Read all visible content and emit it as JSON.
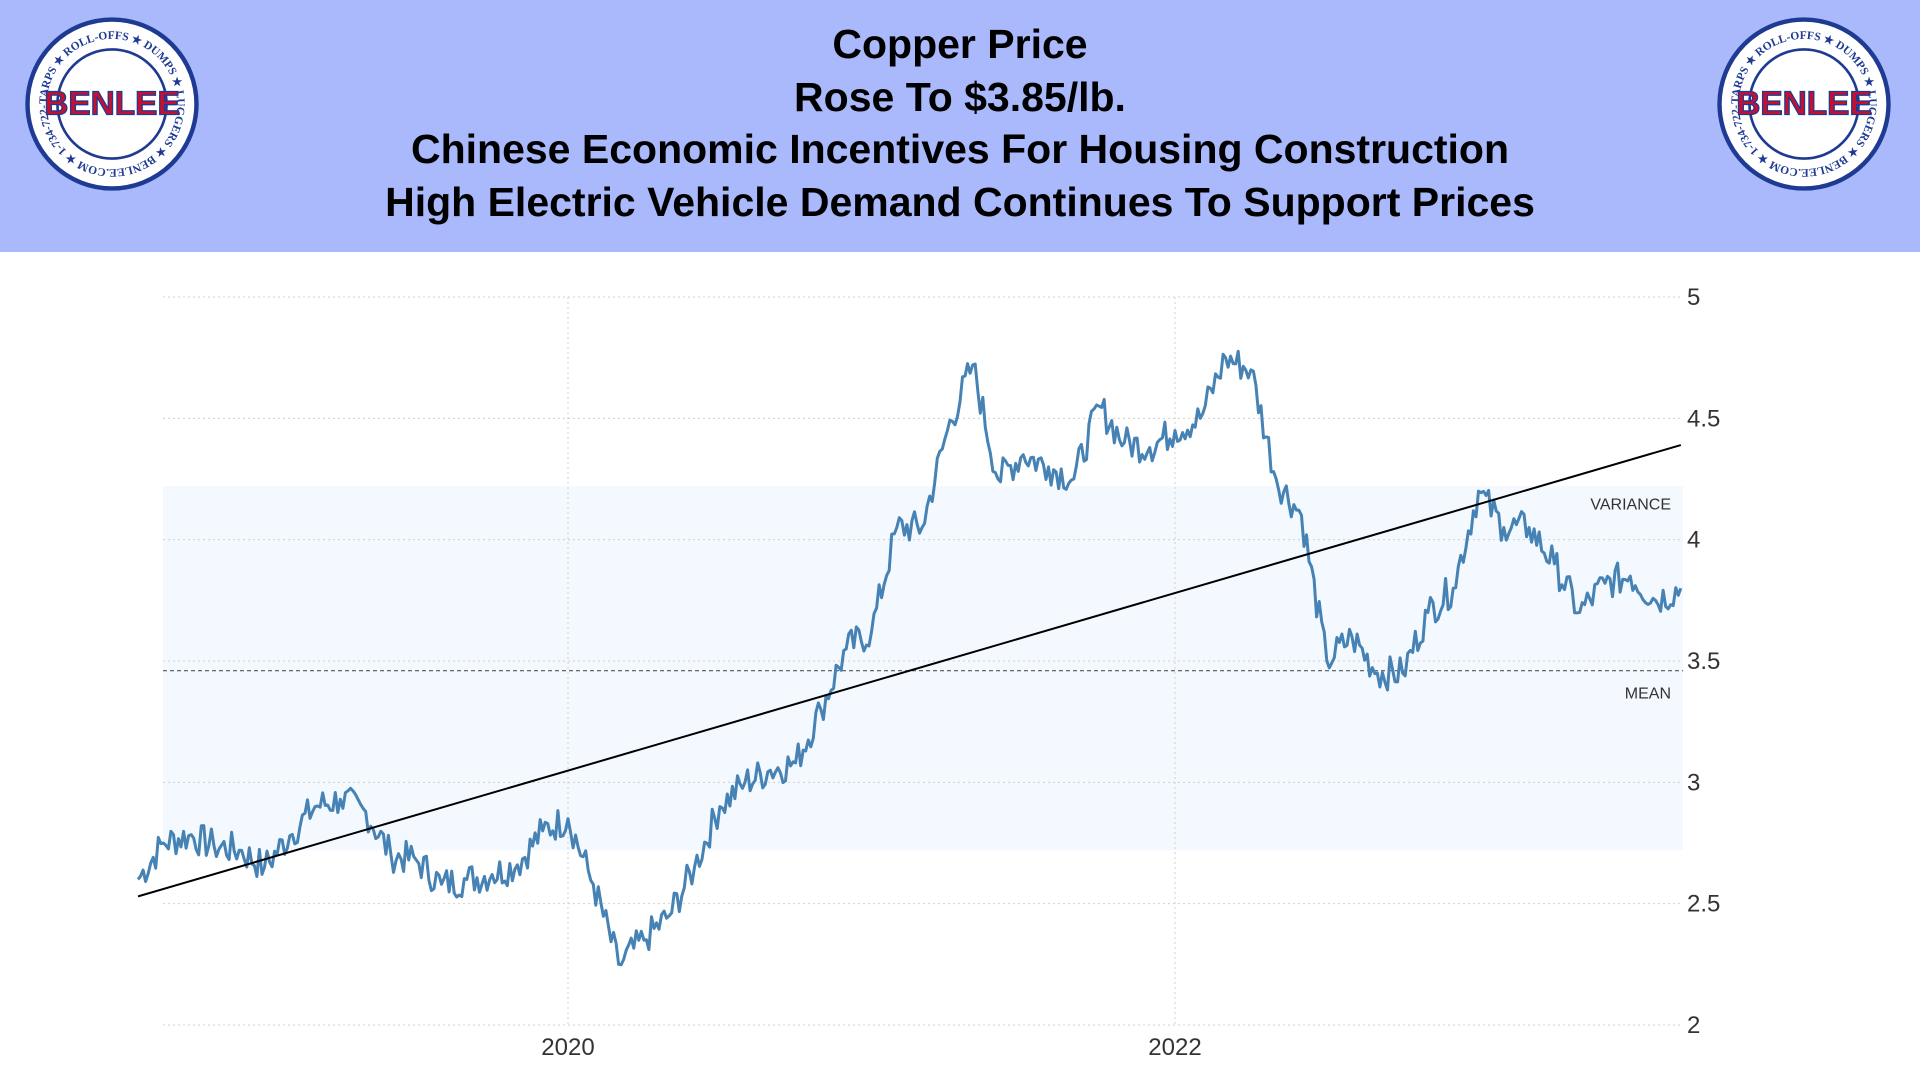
{
  "header": {
    "lines": [
      "Copper Price",
      "Rose To $3.85/lb.",
      "Chinese Economic Incentives For Housing Construction",
      "High Electric Vehicle Demand Continues To Support Prices"
    ],
    "background": "#a9b9fb"
  },
  "logo": {
    "name": "BENLEE",
    "ring_text": "TARPS ★ ROLL-OFFS ★ DUMPS ★ LUGGERS ★ BENLEE.COM ★ 1-734-722-8100 ★ PARTS ★",
    "colors": {
      "ring": "#1f3a93",
      "text": "#c8102e",
      "star": "#c8102e"
    }
  },
  "chart_data": {
    "type": "line",
    "title": "",
    "xlabel": "",
    "ylabel": "",
    "x_ticks": [
      "2020",
      "2022"
    ],
    "y_ticks": [
      2,
      2.5,
      3,
      3.5,
      4,
      4.5,
      5
    ],
    "ylim": [
      2,
      5
    ],
    "xlim": [
      "2018-08",
      "2023-09"
    ],
    "grid": true,
    "series": [
      {
        "color": "#4682b4",
        "points": [
          [
            "2018-08",
            2.6
          ],
          [
            "2018-09",
            2.75
          ],
          [
            "2018-10",
            2.78
          ],
          [
            "2018-11",
            2.74
          ],
          [
            "2018-12",
            2.72
          ],
          [
            "2019-01",
            2.65
          ],
          [
            "2019-02",
            2.78
          ],
          [
            "2019-03",
            2.9
          ],
          [
            "2019-04",
            2.93
          ],
          [
            "2019-05",
            2.88
          ],
          [
            "2019-06",
            2.7
          ],
          [
            "2019-07",
            2.68
          ],
          [
            "2019-08",
            2.58
          ],
          [
            "2019-09",
            2.6
          ],
          [
            "2019-10",
            2.62
          ],
          [
            "2019-11",
            2.66
          ],
          [
            "2019-12",
            2.8
          ],
          [
            "2020-01",
            2.85
          ],
          [
            "2020-02",
            2.58
          ],
          [
            "2020-03",
            2.25
          ],
          [
            "2020-04",
            2.35
          ],
          [
            "2020-05",
            2.45
          ],
          [
            "2020-06",
            2.65
          ],
          [
            "2020-07",
            2.9
          ],
          [
            "2020-08",
            3.0
          ],
          [
            "2020-09",
            3.05
          ],
          [
            "2020-10",
            3.08
          ],
          [
            "2020-11",
            3.3
          ],
          [
            "2020-12",
            3.55
          ],
          [
            "2021-01",
            3.62
          ],
          [
            "2021-02",
            4.05
          ],
          [
            "2021-03",
            4.05
          ],
          [
            "2021-04",
            4.45
          ],
          [
            "2021-05",
            4.72
          ],
          [
            "2021-06",
            4.25
          ],
          [
            "2021-07",
            4.35
          ],
          [
            "2021-08",
            4.3
          ],
          [
            "2021-09",
            4.25
          ],
          [
            "2021-10",
            4.55
          ],
          [
            "2021-11",
            4.4
          ],
          [
            "2021-12",
            4.38
          ],
          [
            "2022-01",
            4.45
          ],
          [
            "2022-02",
            4.5
          ],
          [
            "2022-03",
            4.75
          ],
          [
            "2022-04",
            4.7
          ],
          [
            "2022-05",
            4.25
          ],
          [
            "2022-06",
            4.1
          ],
          [
            "2022-07",
            3.5
          ],
          [
            "2022-08",
            3.6
          ],
          [
            "2022-09",
            3.45
          ],
          [
            "2022-10",
            3.45
          ],
          [
            "2022-11",
            3.7
          ],
          [
            "2022-12",
            3.8
          ],
          [
            "2023-01",
            4.2
          ],
          [
            "2023-02",
            4.05
          ],
          [
            "2023-03",
            4.05
          ],
          [
            "2023-04",
            3.9
          ],
          [
            "2023-05",
            3.7
          ],
          [
            "2023-06",
            3.82
          ],
          [
            "2023-07",
            3.85
          ],
          [
            "2023-08",
            3.75
          ],
          [
            "2023-09",
            3.8
          ]
        ]
      }
    ],
    "trend_line": {
      "start": [
        "2018-08",
        2.53
      ],
      "end": [
        "2023-09",
        4.39
      ],
      "color": "#000000"
    },
    "mean": {
      "value": 3.46,
      "label": "MEAN"
    },
    "variance_band": {
      "low": 2.72,
      "high": 4.22,
      "label": "VARIANCE",
      "color": "#f3f9fe"
    }
  }
}
